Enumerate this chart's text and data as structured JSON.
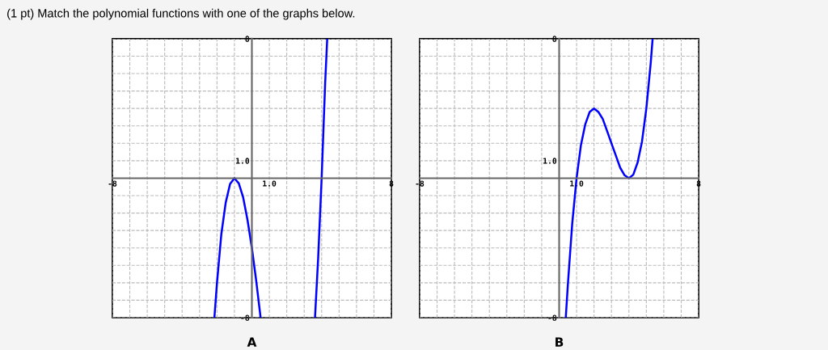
{
  "chart_data": [
    {
      "type": "line",
      "title": "(1 pt) Match the polynomial functions with one of the graphs below.",
      "xlabel": "A",
      "series": [
        {
          "color": "#0000ff",
          "x": [
            -2.15,
            -2,
            -1.75,
            -1.5,
            -1.25,
            -1,
            -0.75,
            -0.5,
            -0.25,
            0,
            0.25,
            0.5,
            2,
            3.62,
            3.8,
            4,
            4.2,
            4.32
          ],
          "values": [
            -8,
            -6,
            -3.2,
            -1.4,
            -0.33,
            0,
            -0.3,
            -1.1,
            -2.4,
            -4,
            -5.9,
            -8,
            null,
            -8,
            -4.6,
            0,
            5.4,
            8
          ]
        }
      ],
      "xlim": [
        -8,
        8
      ],
      "ylim": [
        -8,
        8
      ],
      "xticks": [
        {
          "value": -8,
          "label": "-8"
        },
        {
          "value": -7,
          "label": null
        },
        {
          "value": -6,
          "label": null
        },
        {
          "value": -5,
          "label": null
        },
        {
          "value": -4,
          "label": null
        },
        {
          "value": -3,
          "label": null
        },
        {
          "value": -2,
          "label": null
        },
        {
          "value": -1,
          "label": null
        },
        {
          "value": 0,
          "label": null
        },
        {
          "value": 1,
          "label": "1.0"
        },
        {
          "value": 2,
          "label": null
        },
        {
          "value": 3,
          "label": null
        },
        {
          "value": 4,
          "label": null
        },
        {
          "value": 5,
          "label": null
        },
        {
          "value": 6,
          "label": null
        },
        {
          "value": 7,
          "label": null
        },
        {
          "value": 8,
          "label": "8"
        }
      ],
      "yticks": [
        {
          "value": -8,
          "label": "-8"
        },
        {
          "value": -7,
          "label": null
        },
        {
          "value": -6,
          "label": null
        },
        {
          "value": -5,
          "label": null
        },
        {
          "value": -4,
          "label": null
        },
        {
          "value": -3,
          "label": null
        },
        {
          "value": -2,
          "label": null
        },
        {
          "value": -1,
          "label": null
        },
        {
          "value": 0,
          "label": null
        },
        {
          "value": 1,
          "label": "1.0"
        },
        {
          "value": 2,
          "label": null
        },
        {
          "value": 3,
          "label": null
        },
        {
          "value": 4,
          "label": null
        },
        {
          "value": 5,
          "label": null
        },
        {
          "value": 6,
          "label": null
        },
        {
          "value": 7,
          "label": null
        },
        {
          "value": 8,
          "label": "8"
        }
      ],
      "grid": true,
      "line_style": "solid",
      "marker": "none"
    },
    {
      "type": "line",
      "xlabel": "B",
      "series": [
        {
          "color": "#0000ff",
          "x": [
            0.38,
            0.5,
            0.75,
            1,
            1.25,
            1.5,
            1.75,
            2,
            2.25,
            2.5,
            2.75,
            3,
            3.25,
            3.5,
            3.75,
            4,
            4.25,
            4.5,
            4.75,
            5,
            5.25,
            5.36
          ],
          "values": [
            -8,
            -6.1,
            -2.6,
            0,
            1.9,
            3.1,
            3.8,
            4,
            3.8,
            3.4,
            2.7,
            2,
            1.3,
            0.6,
            0.17,
            0,
            0.2,
            0.9,
            2.1,
            4,
            6.6,
            8
          ]
        }
      ],
      "xlim": [
        -8,
        8
      ],
      "ylim": [
        -8,
        8
      ],
      "xticks": [
        {
          "value": -8,
          "label": "-8"
        },
        {
          "value": -7,
          "label": null
        },
        {
          "value": -6,
          "label": null
        },
        {
          "value": -5,
          "label": null
        },
        {
          "value": -4,
          "label": null
        },
        {
          "value": -3,
          "label": null
        },
        {
          "value": -2,
          "label": null
        },
        {
          "value": -1,
          "label": null
        },
        {
          "value": 0,
          "label": null
        },
        {
          "value": 1,
          "label": "1.0"
        },
        {
          "value": 2,
          "label": null
        },
        {
          "value": 3,
          "label": null
        },
        {
          "value": 4,
          "label": null
        },
        {
          "value": 5,
          "label": null
        },
        {
          "value": 6,
          "label": null
        },
        {
          "value": 7,
          "label": null
        },
        {
          "value": 8,
          "label": "8"
        }
      ],
      "yticks": [
        {
          "value": -8,
          "label": "-8"
        },
        {
          "value": -7,
          "label": null
        },
        {
          "value": -6,
          "label": null
        },
        {
          "value": -5,
          "label": null
        },
        {
          "value": -4,
          "label": null
        },
        {
          "value": -3,
          "label": null
        },
        {
          "value": -2,
          "label": null
        },
        {
          "value": -1,
          "label": null
        },
        {
          "value": 0,
          "label": null
        },
        {
          "value": 1,
          "label": "1.0"
        },
        {
          "value": 2,
          "label": null
        },
        {
          "value": 3,
          "label": null
        },
        {
          "value": 4,
          "label": null
        },
        {
          "value": 5,
          "label": null
        },
        {
          "value": 6,
          "label": null
        },
        {
          "value": 7,
          "label": null
        },
        {
          "value": 8,
          "label": "8"
        }
      ],
      "grid": true,
      "line_style": "solid",
      "marker": "none"
    }
  ]
}
